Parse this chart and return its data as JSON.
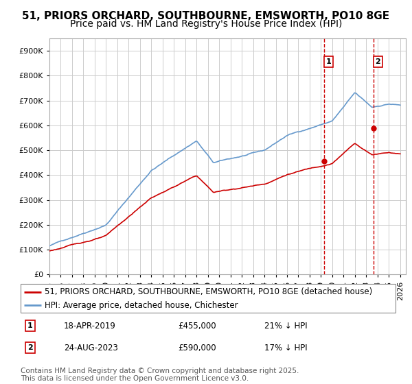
{
  "title1": "51, PRIORS ORCHARD, SOUTHBOURNE, EMSWORTH, PO10 8GE",
  "title2": "Price paid vs. HM Land Registry's House Price Index (HPI)",
  "ytick_vals": [
    0,
    100000,
    200000,
    300000,
    400000,
    500000,
    600000,
    700000,
    800000,
    900000
  ],
  "ylim": [
    0,
    950000
  ],
  "xlim_start": 1995.0,
  "xlim_end": 2026.5,
  "sale1_date": 2019.29,
  "sale1_price": 455000,
  "sale1_label": "1",
  "sale1_text1": "18-APR-2019",
  "sale1_text2": "£455,000",
  "sale1_text3": "21% ↓ HPI",
  "sale2_date": 2023.65,
  "sale2_price": 590000,
  "sale2_label": "2",
  "sale2_text1": "24-AUG-2023",
  "sale2_text2": "£590,000",
  "sale2_text3": "17% ↓ HPI",
  "legend_line1": "51, PRIORS ORCHARD, SOUTHBOURNE, EMSWORTH, PO10 8GE (detached house)",
  "legend_line2": "HPI: Average price, detached house, Chichester",
  "footer": "Contains HM Land Registry data © Crown copyright and database right 2025.\nThis data is licensed under the Open Government Licence v3.0.",
  "sale_color": "#cc0000",
  "hpi_color": "#6699cc",
  "vline_color": "#cc0000",
  "background_color": "#ffffff",
  "grid_color": "#cccccc",
  "title_fontsize": 11,
  "subtitle_fontsize": 10,
  "legend_fontsize": 8.5,
  "footer_fontsize": 7.5
}
